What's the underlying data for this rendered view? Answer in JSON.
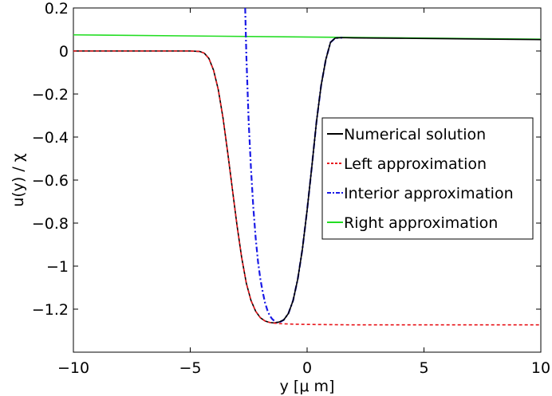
{
  "chart_data": {
    "type": "line",
    "title": "",
    "xlabel": "y [μ m]",
    "ylabel": "u(y) / χ",
    "xlim": [
      -10,
      10
    ],
    "ylim": [
      -1.4,
      0.2
    ],
    "xticks": [
      -10,
      -5,
      0,
      5,
      10
    ],
    "xtick_labels": [
      "−10",
      "−5",
      "0",
      "5",
      "10"
    ],
    "yticks": [
      0.2,
      0,
      -0.2,
      -0.4,
      -0.6,
      -0.8,
      -1,
      -1.2
    ],
    "ytick_labels": [
      "0.2",
      "0",
      "−0.2",
      "−0.4",
      "−0.6",
      "−0.8",
      "−1",
      "−1.2"
    ],
    "grid": false,
    "legend_position": "right",
    "series": [
      {
        "name": "Numerical solution",
        "color": "#000000",
        "dash": "solid",
        "x": [
          -10,
          -6,
          -5,
          -4.6,
          -4.4,
          -4.2,
          -4.0,
          -3.8,
          -3.6,
          -3.4,
          -3.2,
          -3.0,
          -2.8,
          -2.6,
          -2.4,
          -2.2,
          -2.0,
          -1.8,
          -1.6,
          -1.4,
          -1.2,
          -1.0,
          -0.8,
          -0.6,
          -0.4,
          -0.2,
          0.0,
          0.2,
          0.4,
          0.6,
          0.8,
          1.0,
          1.2,
          1.5,
          2,
          4,
          6,
          8,
          10
        ],
        "y": [
          0.0,
          0.0,
          0.0,
          -0.002,
          -0.01,
          -0.035,
          -0.09,
          -0.18,
          -0.31,
          -0.47,
          -0.64,
          -0.81,
          -0.96,
          -1.08,
          -1.16,
          -1.21,
          -1.24,
          -1.255,
          -1.262,
          -1.264,
          -1.26,
          -1.25,
          -1.22,
          -1.16,
          -1.06,
          -0.92,
          -0.74,
          -0.54,
          -0.33,
          -0.16,
          -0.04,
          0.04,
          0.06,
          0.062,
          0.061,
          0.059,
          0.057,
          0.055,
          0.053
        ]
      },
      {
        "name": "Left approximation",
        "color": "#e8161b",
        "dash": "dashed",
        "x": [
          -10,
          -6,
          -5,
          -4.6,
          -4.4,
          -4.2,
          -4.0,
          -3.8,
          -3.6,
          -3.4,
          -3.2,
          -3.0,
          -2.8,
          -2.6,
          -2.4,
          -2.2,
          -2.0,
          -1.8,
          -1.6,
          -1.4,
          -1.2,
          -1.0,
          -0.5,
          0,
          1,
          2,
          4,
          6,
          8,
          10
        ],
        "y": [
          0.0,
          0.0,
          0.0,
          -0.002,
          -0.01,
          -0.035,
          -0.09,
          -0.18,
          -0.31,
          -0.47,
          -0.64,
          -0.81,
          -0.96,
          -1.08,
          -1.16,
          -1.21,
          -1.24,
          -1.255,
          -1.262,
          -1.265,
          -1.267,
          -1.268,
          -1.27,
          -1.271,
          -1.272,
          -1.273,
          -1.273,
          -1.273,
          -1.273,
          -1.273
        ]
      },
      {
        "name": "Interior approximation",
        "color": "#1a1ae6",
        "dash": "dashdot",
        "x": [
          -2.65,
          -2.6,
          -2.5,
          -2.4,
          -2.3,
          -2.2,
          -2.1,
          -2.0,
          -1.9,
          -1.8,
          -1.7,
          -1.6,
          -1.5,
          -1.4,
          -1.3,
          -1.2,
          -1.0,
          -0.8,
          -0.6,
          -0.4,
          -0.2,
          0.0,
          0.2,
          0.4,
          0.6,
          0.8,
          1.0,
          1.2,
          1.5
        ],
        "y": [
          0.2,
          -0.02,
          -0.33,
          -0.55,
          -0.73,
          -0.87,
          -0.98,
          -1.06,
          -1.12,
          -1.17,
          -1.205,
          -1.23,
          -1.245,
          -1.255,
          -1.262,
          -1.262,
          -1.25,
          -1.22,
          -1.16,
          -1.06,
          -0.92,
          -0.74,
          -0.54,
          -0.33,
          -0.16,
          -0.04,
          0.04,
          0.06,
          0.062
        ]
      },
      {
        "name": "Right approximation",
        "color": "#22dd22",
        "dash": "solid",
        "x": [
          -10,
          10
        ],
        "y": [
          0.075,
          0.055
        ]
      }
    ]
  }
}
